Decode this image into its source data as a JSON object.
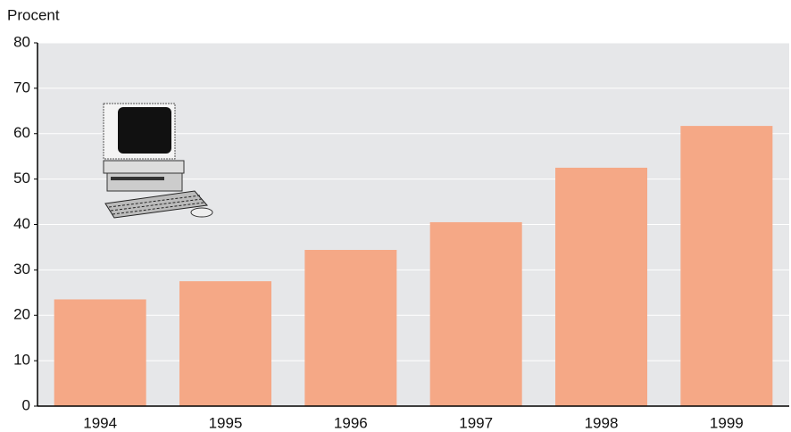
{
  "chart_data": {
    "type": "bar",
    "y_axis_label": "Procent",
    "categories": [
      "1994",
      "1995",
      "1996",
      "1997",
      "1998",
      "1999"
    ],
    "values": [
      23.5,
      27.5,
      34.4,
      40.5,
      52.5,
      61.7
    ],
    "color": "#f5a886",
    "ylim": [
      0,
      80
    ],
    "yticks": [
      0,
      10,
      20,
      30,
      40,
      50,
      60,
      70,
      80
    ],
    "grid": true
  }
}
